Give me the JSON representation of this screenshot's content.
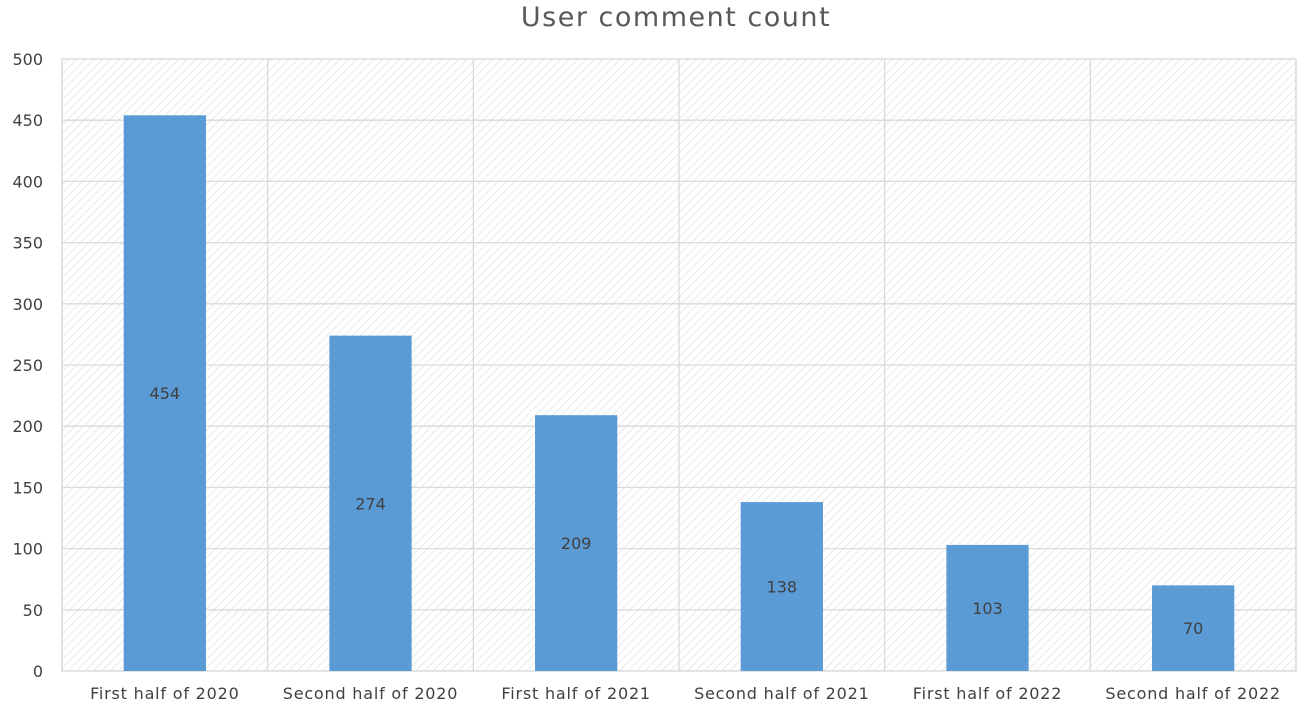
{
  "chart_data": {
    "type": "bar",
    "title": "User comment count",
    "xlabel": "",
    "ylabel": "",
    "categories": [
      "First half of 2020",
      "Second half of 2020",
      "First half of 2021",
      "Second half of 2021",
      "First half of 2022",
      "Second half of 2022"
    ],
    "values": [
      454,
      274,
      209,
      138,
      103,
      70
    ],
    "ylim": [
      0,
      500
    ],
    "yticks": [
      0,
      50,
      100,
      150,
      200,
      250,
      300,
      350,
      400,
      450,
      500
    ],
    "grid": true,
    "legend": "none",
    "data_labels": "center",
    "bar_color": "#5b9bd5",
    "grid_color": "#d9d9d9",
    "background_pattern": "diagonal-hatch"
  }
}
